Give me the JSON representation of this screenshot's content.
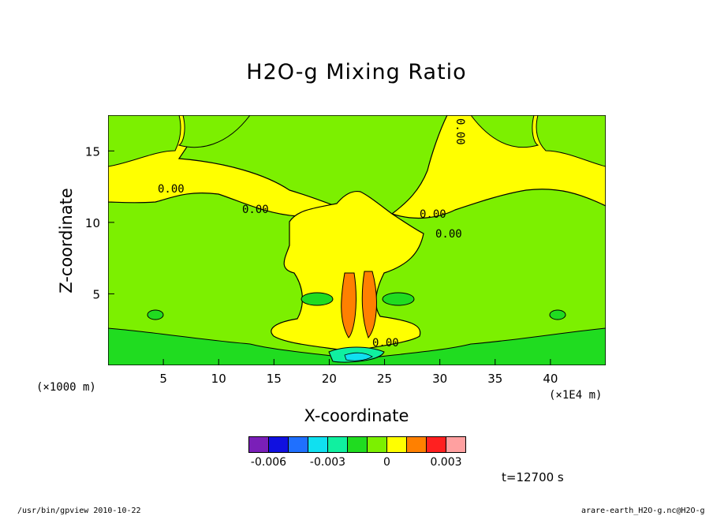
{
  "chart_data": {
    "type": "heatmap",
    "title": "H2O-g Mixing Ratio",
    "xlabel": "X-coordinate",
    "ylabel": "Z-coordinate",
    "x_unit_label": "(×1E4 m)",
    "y_unit_label": "(×1000 m)",
    "xlim": [
      0,
      45
    ],
    "ylim": [
      0,
      17.5
    ],
    "x_ticks": [
      5,
      10,
      15,
      20,
      25,
      30,
      35,
      40
    ],
    "x_tick_labels": [
      "5",
      "10",
      "15",
      "20",
      "25",
      "30",
      "35",
      "40"
    ],
    "y_ticks": [
      5,
      10,
      15
    ],
    "y_tick_labels": [
      "5",
      "10",
      "15"
    ],
    "contour_labels": [
      "0.00",
      "0.00",
      "0.00",
      "0.00",
      "0.00",
      "0.00"
    ],
    "colorbar": {
      "levels": [
        -0.007,
        -0.006,
        -0.005,
        -0.004,
        -0.003,
        -0.002,
        -0.001,
        0,
        0.001,
        0.002,
        0.003,
        0.004
      ],
      "colors": [
        "#7a1fb8",
        "#1010e0",
        "#1f70ff",
        "#10e0f0",
        "#10f0a0",
        "#20dc20",
        "#7cf000",
        "#ffff00",
        "#ff8000",
        "#ff2020",
        "#ffa0a0"
      ],
      "tick_values": [
        -0.006,
        -0.003,
        0,
        0.003
      ],
      "tick_labels": [
        "-0.006",
        "-0.003",
        "0",
        "0.003"
      ]
    },
    "grid": false
  },
  "time_label": "t=12700 s",
  "footer_left": "/usr/bin/gpview  2010-10-22",
  "footer_right": "arare-earth_H2O-g.nc@H2O-g"
}
